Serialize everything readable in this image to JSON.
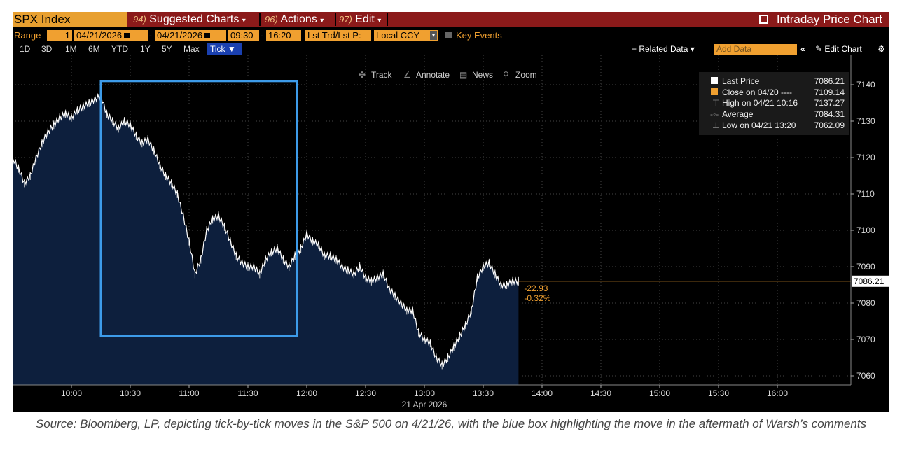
{
  "header": {
    "ticker": "SPX Index",
    "menus": [
      {
        "num": "94)",
        "label": "Suggested Charts"
      },
      {
        "num": "96)",
        "label": "Actions"
      },
      {
        "num": "97)",
        "label": "Edit"
      }
    ],
    "title": "Intraday Price Chart"
  },
  "range_bar": {
    "range_label": "Range",
    "range_value": "1",
    "start_date": "04/21/2026",
    "dash": "-",
    "end_date": "04/21/2026",
    "start_time": "09:30",
    "end_time": "16:20",
    "field": "Lst Trd/Lst P:",
    "currency": "Local CCY",
    "key_events": "Key Events"
  },
  "period_bar": {
    "periods": [
      "1D",
      "3D",
      "1M",
      "6M",
      "YTD",
      "1Y",
      "5Y",
      "Max"
    ],
    "selected": "Tick ▼",
    "related": "+ Related Data ▾",
    "add_data": "Add Data",
    "edit_chart": "✎ Edit Chart"
  },
  "toolbar": {
    "track": "Track",
    "annotate": "Annotate",
    "news": "News",
    "zoom": "Zoom"
  },
  "legend": {
    "last_label": "Last Price",
    "last_value": "7086.21",
    "close_label": "Close on 04/20 ----",
    "close_value": "7109.14",
    "high_label": "High on 04/21 10:16",
    "high_value": "7137.27",
    "avg_label": "Average",
    "avg_value": "7084.31",
    "low_label": "Low on 04/21 13:20",
    "low_value": "7062.09"
  },
  "chart_data": {
    "type": "area",
    "series": [
      {
        "name": "Last Price",
        "x": [
          "09:30",
          "09:33",
          "09:36",
          "09:39",
          "09:42",
          "09:45",
          "09:48",
          "09:51",
          "09:54",
          "09:57",
          "10:00",
          "10:03",
          "10:06",
          "10:09",
          "10:12",
          "10:15",
          "10:18",
          "10:21",
          "10:24",
          "10:27",
          "10:30",
          "10:33",
          "10:36",
          "10:39",
          "10:42",
          "10:45",
          "10:48",
          "10:51",
          "10:54",
          "10:57",
          "11:00",
          "11:03",
          "11:06",
          "11:09",
          "11:12",
          "11:15",
          "11:18",
          "11:21",
          "11:24",
          "11:27",
          "11:30",
          "11:33",
          "11:36",
          "11:39",
          "11:42",
          "11:45",
          "11:48",
          "11:51",
          "11:54",
          "11:57",
          "12:00",
          "12:03",
          "12:06",
          "12:09",
          "12:12",
          "12:15",
          "12:18",
          "12:21",
          "12:24",
          "12:27",
          "12:30",
          "12:33",
          "12:36",
          "12:39",
          "12:42",
          "12:45",
          "12:48",
          "12:51",
          "12:54",
          "12:57",
          "13:00",
          "13:03",
          "13:06",
          "13:09",
          "13:12",
          "13:15",
          "13:18",
          "13:21",
          "13:24",
          "13:27",
          "13:30",
          "13:33",
          "13:36",
          "13:39",
          "13:42",
          "13:45",
          "13:48"
        ],
        "values": [
          7120,
          7117,
          7113,
          7115,
          7120,
          7124,
          7127,
          7129,
          7131,
          7132,
          7131,
          7133,
          7134,
          7135,
          7136,
          7137,
          7132,
          7130,
          7128,
          7130,
          7129,
          7126,
          7124,
          7125,
          7122,
          7118,
          7115,
          7113,
          7110,
          7104,
          7097,
          7088,
          7092,
          7100,
          7103,
          7104,
          7101,
          7097,
          7093,
          7091,
          7090,
          7090,
          7088,
          7092,
          7094,
          7095,
          7092,
          7090,
          7093,
          7095,
          7099,
          7097,
          7096,
          7093,
          7093,
          7092,
          7090,
          7089,
          7088,
          7090,
          7087,
          7086,
          7087,
          7088,
          7084,
          7082,
          7080,
          7078,
          7078,
          7072,
          7070,
          7069,
          7065,
          7063,
          7065,
          7068,
          7071,
          7074,
          7078,
          7087,
          7090,
          7091,
          7088,
          7085,
          7085,
          7086,
          7086
        ]
      }
    ],
    "previous_close": 7109.14,
    "change": "-22.93",
    "change_pct": "-0.32%",
    "ylim": [
      7055,
      7145
    ],
    "yticks": [
      7060,
      7070,
      7080,
      7090,
      7100,
      7110,
      7120,
      7130,
      7140
    ],
    "xticks": [
      "10:00",
      "10:30",
      "11:00",
      "11:30",
      "12:00",
      "12:30",
      "13:00",
      "13:30",
      "14:00",
      "14:30",
      "15:00",
      "15:30",
      "16:00"
    ],
    "x_range": [
      "09:30",
      "16:20"
    ],
    "date_label": "21 Apr 2026",
    "highlight_box": {
      "x_start": "10:15",
      "x_end": "11:55",
      "y_low": 7071,
      "y_high": 7141,
      "color": "#3d9be9"
    },
    "grid": true,
    "colors": {
      "fill": "#0d1f3d",
      "line": "#ffffff",
      "close_line": "#f0a030",
      "last_price": "#f0a030"
    }
  },
  "caption": "Source: Bloomberg, LP, depicting tick-by-tick moves in the S&P 500 on 4/21/26, with the blue box highlighting the move in the aftermath of Warsh’s comments"
}
